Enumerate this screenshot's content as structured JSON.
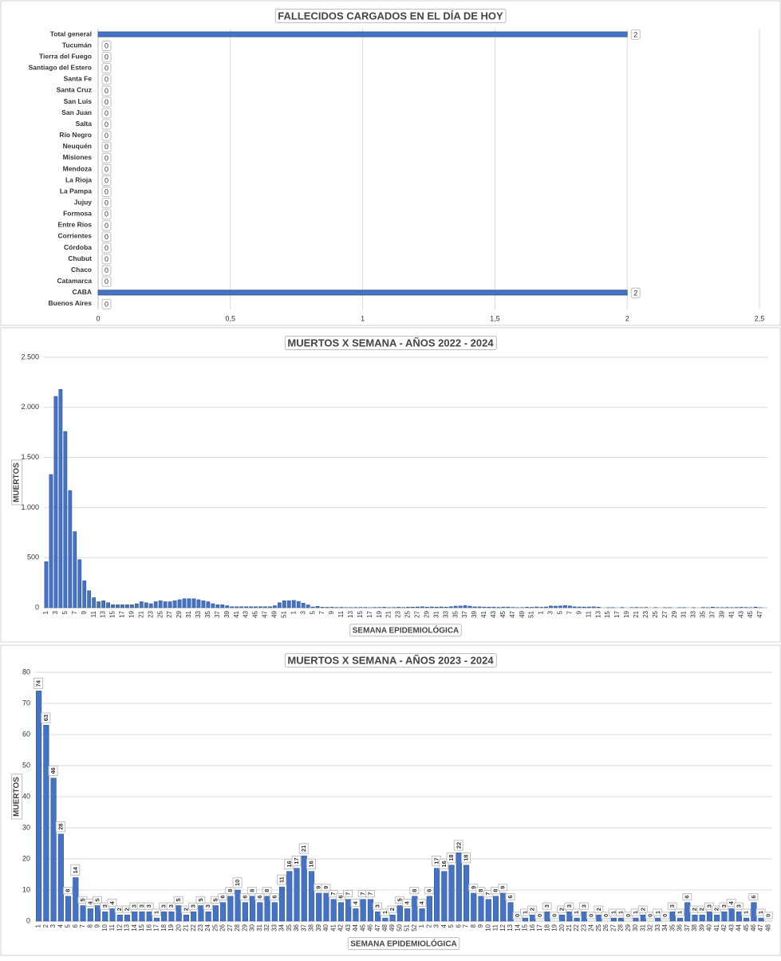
{
  "chart_data": [
    {
      "type": "barh",
      "title": "FALLECIDOS CARGADOS EN EL DÍA DE HOY",
      "categories": [
        "Total general",
        "Tucumán",
        "Tierra del Fuego",
        "Santiago del Estero",
        "Santa Fe",
        "Santa Cruz",
        "San Luis",
        "San Juan",
        "Salta",
        "Río Negro",
        "Neuquén",
        "Misiones",
        "Mendoza",
        "La Rioja",
        "La Pampa",
        "Jujuy",
        "Formosa",
        "Entre Ríos",
        "Corrientes",
        "Córdoba",
        "Chubut",
        "Chaco",
        "Catamarca",
        "CABA",
        "Buenos Aires"
      ],
      "values": [
        2,
        0,
        0,
        0,
        0,
        0,
        0,
        0,
        0,
        0,
        0,
        0,
        0,
        0,
        0,
        0,
        0,
        0,
        0,
        0,
        0,
        0,
        0,
        2,
        0
      ],
      "color": "#4472c4",
      "xlim": [
        0,
        2.5
      ],
      "xticks": [
        0,
        {
          "value": 0.5,
          "label": "0,5"
        },
        1,
        {
          "value": 1.5,
          "label": "1,5"
        },
        2,
        {
          "value": 2.5,
          "label": "2,5"
        }
      ],
      "grid": true,
      "data_labels": true
    },
    {
      "type": "bar",
      "title": "MUERTOS X SEMANA - AÑOS 2022 - 2024",
      "xlabel": "SEMANA EPIDEMIOLÓGICA",
      "ylabel": "MUERTOS",
      "categories": [
        1,
        null,
        3,
        null,
        5,
        null,
        7,
        null,
        9,
        null,
        11,
        null,
        13,
        null,
        15,
        null,
        17,
        null,
        19,
        null,
        21,
        null,
        23,
        null,
        25,
        null,
        27,
        null,
        29,
        null,
        31,
        null,
        33,
        null,
        35,
        null,
        37,
        null,
        39,
        null,
        41,
        null,
        43,
        null,
        45,
        null,
        47,
        null,
        49,
        null,
        51,
        null,
        1,
        null,
        3,
        null,
        5,
        null,
        7,
        null,
        9,
        null,
        11,
        null,
        13,
        null,
        15,
        null,
        17,
        null,
        19,
        null,
        21,
        null,
        23,
        null,
        25,
        null,
        27,
        null,
        29,
        null,
        31,
        null,
        33,
        null,
        35,
        null,
        37,
        null,
        39,
        null,
        41,
        null,
        43,
        null,
        45,
        null,
        47,
        null,
        49,
        null,
        51,
        null,
        1,
        null,
        3,
        null,
        5,
        null,
        7,
        null,
        9,
        null,
        11,
        null,
        13,
        null,
        15,
        null,
        17,
        null,
        19,
        null,
        21,
        null,
        23,
        null,
        25,
        null,
        27,
        null,
        29,
        null,
        31,
        null,
        33,
        null,
        35,
        null,
        37,
        null,
        39,
        null,
        41,
        null,
        43,
        null,
        45,
        null,
        47,
        null
      ],
      "values": [
        460,
        1330,
        2110,
        2180,
        1760,
        1170,
        760,
        480,
        270,
        170,
        100,
        60,
        70,
        50,
        30,
        30,
        30,
        30,
        30,
        40,
        60,
        50,
        40,
        60,
        70,
        60,
        60,
        70,
        80,
        90,
        90,
        90,
        80,
        70,
        60,
        40,
        30,
        30,
        20,
        10,
        10,
        10,
        10,
        10,
        10,
        10,
        10,
        10,
        20,
        50,
        70,
        70,
        74,
        63,
        46,
        28,
        8,
        14,
        5,
        4,
        5,
        3,
        4,
        2,
        2,
        3,
        3,
        3,
        1,
        3,
        3,
        5,
        2,
        3,
        5,
        3,
        5,
        6,
        8,
        10,
        6,
        8,
        6,
        8,
        6,
        11,
        16,
        17,
        21,
        16,
        9,
        9,
        7,
        6,
        7,
        4,
        7,
        7,
        3,
        1,
        2,
        5,
        4,
        8,
        4,
        8,
        17,
        16,
        18,
        22,
        18,
        9,
        8,
        7,
        8,
        9,
        6,
        0,
        1,
        2,
        0,
        3,
        0,
        2,
        3,
        1,
        3,
        0,
        2,
        0,
        1,
        1,
        0,
        1,
        2,
        0,
        1,
        0,
        3,
        1,
        6,
        2,
        2,
        3,
        2,
        3,
        4,
        3,
        1,
        6,
        1,
        0
      ],
      "color": "#4472c4",
      "ylim": [
        0,
        2500
      ],
      "yticks": [
        0,
        500,
        {
          "value": 1000,
          "label": "1.000"
        },
        {
          "value": 1500,
          "label": "1.500"
        },
        {
          "value": 2000,
          "label": "2.000"
        },
        {
          "value": 2500,
          "label": "2.500"
        }
      ],
      "grid": true,
      "data_labels": false
    },
    {
      "type": "bar",
      "title": "MUERTOS X SEMANA - AÑOS 2023 - 2024",
      "xlabel": "SEMANA EPIDEMIOLÓGICA",
      "ylabel": "MUERTOS",
      "categories": [
        1,
        2,
        3,
        4,
        5,
        6,
        7,
        8,
        9,
        10,
        11,
        12,
        13,
        14,
        15,
        16,
        17,
        18,
        19,
        20,
        21,
        22,
        23,
        24,
        25,
        26,
        27,
        28,
        29,
        30,
        31,
        32,
        33,
        34,
        35,
        36,
        37,
        38,
        39,
        40,
        41,
        42,
        43,
        44,
        45,
        46,
        47,
        48,
        49,
        50,
        51,
        52,
        1,
        2,
        3,
        4,
        5,
        6,
        7,
        8,
        9,
        10,
        11,
        12,
        13,
        14,
        15,
        16,
        17,
        18,
        19,
        20,
        21,
        22,
        23,
        24,
        25,
        26,
        27,
        28,
        29,
        30,
        31,
        32,
        33,
        34,
        35,
        36,
        37,
        38,
        39,
        40,
        41,
        42,
        43,
        44,
        45,
        46,
        47,
        48
      ],
      "values": [
        74,
        63,
        46,
        28,
        8,
        14,
        5,
        4,
        5,
        3,
        4,
        2,
        2,
        3,
        3,
        3,
        1,
        3,
        3,
        5,
        2,
        3,
        5,
        3,
        5,
        6,
        8,
        10,
        6,
        8,
        6,
        8,
        6,
        11,
        16,
        17,
        21,
        16,
        9,
        9,
        7,
        6,
        7,
        4,
        7,
        7,
        3,
        1,
        2,
        5,
        4,
        8,
        4,
        8,
        17,
        16,
        18,
        22,
        18,
        9,
        8,
        7,
        8,
        9,
        6,
        0,
        1,
        2,
        0,
        3,
        0,
        2,
        3,
        1,
        3,
        0,
        2,
        0,
        1,
        1,
        0,
        1,
        2,
        0,
        1,
        0,
        3,
        1,
        6,
        2,
        2,
        3,
        2,
        3,
        4,
        3,
        1,
        6,
        1,
        0
      ],
      "color": "#4472c4",
      "ylim": [
        0,
        80
      ],
      "yticks": [
        0,
        10,
        20,
        30,
        40,
        50,
        60,
        70,
        80
      ],
      "grid": true,
      "data_labels": true
    }
  ]
}
